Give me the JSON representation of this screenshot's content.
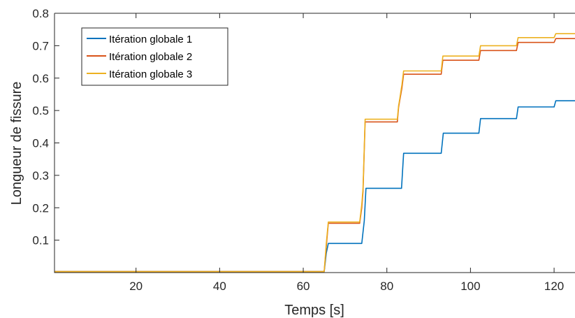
{
  "chart_data": {
    "type": "line",
    "title": "",
    "xlabel": "Temps [s]",
    "ylabel": "Longueur de fissure",
    "xlim": [
      0.5,
      125
    ],
    "ylim": [
      0,
      0.8
    ],
    "x_ticks": [
      20,
      40,
      60,
      80,
      100,
      120
    ],
    "x_tick_labels": [
      "20",
      "40",
      "60",
      "80",
      "100",
      "120"
    ],
    "y_ticks": [
      0.1,
      0.2,
      0.3,
      0.4,
      0.5,
      0.6,
      0.7,
      0.8
    ],
    "y_tick_labels": [
      "0.1",
      "0.2",
      "0.3",
      "0.4",
      "0.5",
      "0.6",
      "0.7",
      "0.8"
    ],
    "grid": false,
    "legend_position": "top-left",
    "series": [
      {
        "name": "Itération globale 1",
        "color": "#0072BD",
        "x": [
          0.5,
          65,
          65.5,
          66,
          74,
          74.6,
          75,
          83.5,
          84,
          93,
          93.5,
          102,
          102.4,
          111,
          111.4,
          120,
          120.4,
          125
        ],
        "y": [
          0.003,
          0.003,
          0.06,
          0.09,
          0.09,
          0.16,
          0.26,
          0.26,
          0.368,
          0.368,
          0.43,
          0.43,
          0.475,
          0.475,
          0.511,
          0.511,
          0.53,
          0.53
        ]
      },
      {
        "name": "Itération globale 2",
        "color": "#D95319",
        "x": [
          0.5,
          65,
          65.5,
          66,
          73.5,
          74,
          74.3,
          74.8,
          82.5,
          82.8,
          83,
          83.6,
          84,
          93,
          93.4,
          102,
          102.4,
          111,
          111.4,
          120,
          120.4,
          125
        ],
        "y": [
          0.003,
          0.003,
          0.08,
          0.152,
          0.152,
          0.2,
          0.25,
          0.465,
          0.465,
          0.51,
          0.525,
          0.57,
          0.612,
          0.612,
          0.655,
          0.655,
          0.685,
          0.685,
          0.71,
          0.71,
          0.722,
          0.722
        ]
      },
      {
        "name": "Itération globale 3",
        "color": "#EDB120",
        "x": [
          0.5,
          65,
          65.5,
          66,
          73.5,
          74,
          74.3,
          74.8,
          82.5,
          82.8,
          83,
          83.6,
          84,
          93,
          93.4,
          102,
          102.4,
          111,
          111.4,
          120,
          120.4,
          125
        ],
        "y": [
          0.003,
          0.003,
          0.09,
          0.156,
          0.156,
          0.21,
          0.26,
          0.473,
          0.473,
          0.515,
          0.53,
          0.58,
          0.622,
          0.622,
          0.668,
          0.668,
          0.7,
          0.7,
          0.725,
          0.725,
          0.737,
          0.737
        ]
      }
    ]
  }
}
